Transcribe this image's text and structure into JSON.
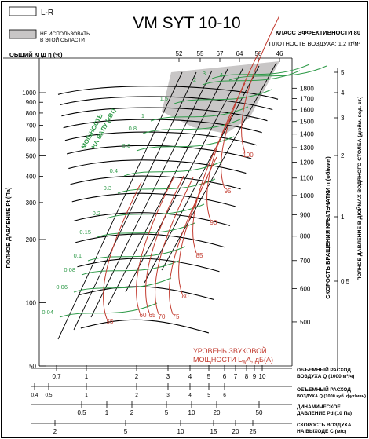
{
  "chart_data": {
    "type": "line",
    "title": "VM SYT 10-10",
    "efficiency_class": "КЛАСС ЭФФЕКТИВНОСТИ 80",
    "density": "ПЛОТНОСТЬ ВОЗДУХА: 1,2 кг/м³",
    "legend": [
      {
        "label": "L-R",
        "color": "#ffffff"
      },
      {
        "label": "НЕ ИСПОЛЬЗОВАТЬ В ЭТОЙ ОБЛАСТИ",
        "color": "#c8c6c6"
      }
    ],
    "efficiency_label": "ОБЩИЙ КПД η (%)",
    "efficiency_ticks": [
      "52",
      "55",
      "67",
      "64",
      "58",
      "46"
    ],
    "y_label": "ПОЛНОЕ ДАВЛЕНИЕ Pt (Па)",
    "y_ticks": [
      "1000",
      "900",
      "800",
      "700",
      "600",
      "500",
      "400",
      "300",
      "200",
      "100",
      "50"
    ],
    "ylim": [
      50,
      1000
    ],
    "x_scales": [
      {
        "label": "ОБЪЕМНЫЙ РАСХОД ВОЗДУХА Q (1000 м³/ч)",
        "ticks": [
          "0.7",
          "1",
          "2",
          "3",
          "4",
          "5",
          "6",
          "7",
          "8",
          "9",
          "10"
        ]
      },
      {
        "label": "ОБЪЕМНЫЙ РАСХОД ВОЗДУХА Q (1000 куб. фут/мин)",
        "ticks": [
          "0.4",
          "0.5",
          "1",
          "2",
          "3",
          "4",
          "5",
          "6"
        ]
      },
      {
        "label": "ДИНАМИЧЕСКОЕ ДАВЛЕНИЕ Pd (10 Па)",
        "ticks": [
          "0.5",
          "1",
          "2",
          "5",
          "10",
          "20",
          "50"
        ]
      },
      {
        "label": "СКОРОСТЬ ВОЗДУХА НА ВЫХОДЕ C (м/с)",
        "ticks": [
          "2",
          "5",
          "10",
          "15",
          "20",
          "25"
        ]
      }
    ],
    "speed_label": "СКОРОСТЬ ВРАЩЕНИЯ КРЫЛЬЧАТКИ  n (об/мин)",
    "speed_ticks": [
      "1800",
      "1700",
      "1600",
      "1500",
      "1400",
      "1300",
      "1200",
      "1100",
      "1000",
      "900",
      "800",
      "700",
      "600",
      "500"
    ],
    "inch_label": "ПОЛНОЕ ДАВЛЕНИЕ В ДЮЙМАХ ВОДЯНОГО СТОЛБА (дюйм. вод. ст.)",
    "inch_ticks": [
      "5",
      "4",
      "3",
      "2",
      "1",
      "0.5"
    ],
    "power_label": "МОЩНОСТЬ НА ВАЛУ (кВт)",
    "power_values": [
      "1.5",
      "1",
      "0.8",
      "0.6",
      "0.4",
      "0.3",
      "0.2",
      "0.15",
      "0.1",
      "0.08",
      "0.06",
      "0.04",
      "2",
      "3",
      "4"
    ],
    "noise_label_1": "УРОВЕНЬ ЗВУКОВОЙ",
    "noise_label_2": "МОЩНОСТИ L",
    "noise_sub": "W",
    "noise_label_3": "А, дБ(А)",
    "noise_values": [
      "55",
      "60",
      "65",
      "70",
      "75",
      "80",
      "85",
      "90",
      "95",
      "100"
    ]
  }
}
